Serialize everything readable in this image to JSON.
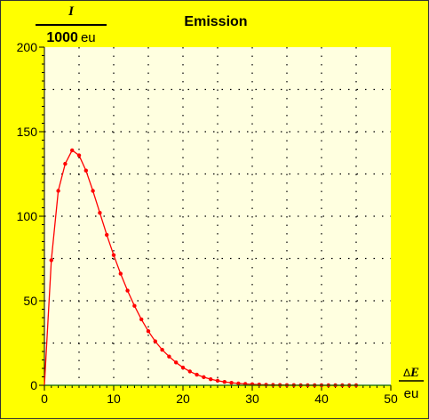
{
  "chart_data": {
    "type": "line",
    "title": "Emission",
    "ylabel_numerator": "I",
    "ylabel_denominator_number": "1000",
    "ylabel_denominator_unit": "eu",
    "xlabel_numerator_prefix": "Δ",
    "xlabel_numerator_symbol": "E",
    "xlabel_denominator": "eu",
    "xlim": [
      0,
      50
    ],
    "ylim": [
      0,
      200
    ],
    "xticks": [
      0,
      10,
      20,
      30,
      40,
      50
    ],
    "yticks": [
      0,
      50,
      100,
      150,
      200
    ],
    "grid": true,
    "series": [
      {
        "color": "#ff0000",
        "x": [
          0,
          1,
          2,
          3,
          4,
          5,
          6,
          7,
          8,
          9,
          10,
          11,
          12,
          13,
          14,
          15,
          16,
          17,
          18,
          19,
          20,
          21,
          22,
          23,
          24,
          25,
          26,
          27,
          28,
          29,
          30,
          31,
          32,
          33,
          34,
          35,
          36,
          37,
          38,
          39,
          40,
          41,
          42,
          43,
          44,
          45
        ],
        "y": [
          0,
          74,
          115,
          131,
          139,
          136,
          127,
          115,
          102,
          89,
          77,
          66,
          56,
          47,
          39,
          32,
          26,
          21,
          17,
          13.5,
          10.5,
          8.2,
          6.3,
          4.8,
          3.6,
          2.7,
          2.0,
          1.5,
          1.1,
          0.8,
          0.6,
          0.4,
          0.3,
          0.2,
          0.15,
          0.1,
          0.07,
          0.05,
          0.03,
          0.02,
          0.015,
          0.01,
          0.007,
          0.005,
          0.003,
          0.002
        ]
      },
      {
        "color": "#006400",
        "x": [
          0,
          50
        ],
        "y": [
          0,
          0
        ]
      }
    ]
  }
}
